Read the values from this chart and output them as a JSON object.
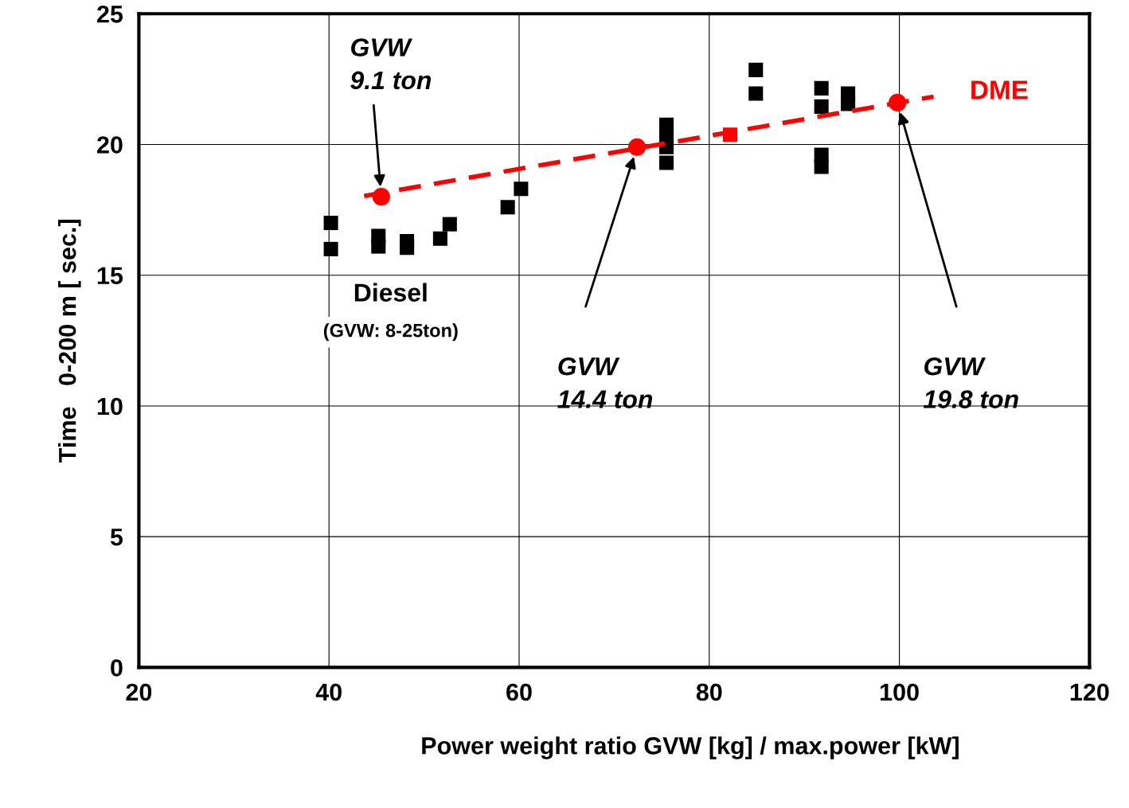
{
  "chart_data": {
    "type": "scatter",
    "xlabel": "Power weight ratio GVW [kg] / max.power [kW]",
    "ylabel": "Time   0-200 m [ sec.]",
    "xlim": [
      20,
      120
    ],
    "ylim": [
      0,
      25
    ],
    "xticks": [
      20,
      40,
      60,
      80,
      100,
      120
    ],
    "yticks": [
      0,
      5,
      10,
      15,
      20,
      25
    ],
    "grid": true,
    "series": [
      {
        "color": "#000000",
        "marker": "square",
        "x": [
          40.2,
          40.2,
          45.2,
          45.2,
          48.2,
          48.2,
          51.7,
          52.7,
          58.8,
          60.2,
          75.5,
          75.5,
          75.5,
          75.5,
          84.9,
          84.9,
          91.8,
          91.8,
          91.8,
          91.8,
          94.6,
          94.6
        ],
        "values": [
          17.0,
          16.0,
          16.5,
          16.1,
          16.3,
          16.05,
          16.4,
          16.95,
          17.6,
          18.3,
          20.75,
          20.35,
          19.9,
          19.3,
          22.85,
          21.95,
          22.15,
          21.45,
          19.6,
          19.15,
          21.95,
          21.55
        ]
      },
      {
        "type": "line",
        "color": "#ff0000",
        "line_style": "dashed",
        "marker": "none",
        "x": [
          43.7,
          103.6
        ],
        "values": [
          18.03,
          21.83
        ]
      },
      {
        "color": "#ff0000",
        "marker": "square",
        "x": [
          82.2
        ],
        "values": [
          20.37
        ]
      },
      {
        "color": "#ff0000",
        "marker": "circle",
        "x": [
          45.5,
          72.4,
          99.8
        ],
        "values": [
          18.0,
          19.9,
          21.6
        ]
      }
    ],
    "annotations": [
      "GVW\n9.1 ton",
      "GVW\n14.4 ton",
      "GVW\n19.8 ton",
      "Diesel",
      "(GVW: 8-25ton)",
      "DME"
    ]
  }
}
